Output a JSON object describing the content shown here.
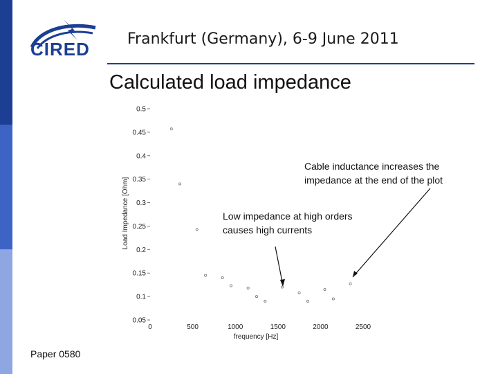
{
  "header": {
    "logo_text": "CIRED",
    "conference": "Frankfurt (Germany), 6-9 June 2011"
  },
  "slide": {
    "title": "Calculated load impedance",
    "footer": "Paper 0580"
  },
  "colors": {
    "brand_blue": "#1c3f94",
    "mid_blue": "#3d63c4",
    "light_blue": "#8ea6e2"
  },
  "annotations": {
    "cable": "Cable inductance increases the impedance at the end of the plot",
    "low": "Low impedance at high orders causes high currents"
  },
  "chart_data": {
    "type": "scatter",
    "title": "",
    "xlabel": "frequency [Hz]",
    "ylabel": "Load Impedance [Ohm]",
    "xlim": [
      0,
      2500
    ],
    "ylim": [
      0.05,
      0.5
    ],
    "xticks": [
      0,
      500,
      1000,
      1500,
      2000,
      2500
    ],
    "xtick_labels": [
      "0",
      "500",
      "1000",
      "1500",
      "2000",
      "2500"
    ],
    "yticks": [
      0.05,
      0.1,
      0.15,
      0.2,
      0.25,
      0.3,
      0.35,
      0.4,
      0.45,
      0.5
    ],
    "ytick_labels": [
      "0.05",
      "0.1",
      "0.15",
      "0.2",
      "0.25",
      "0.3",
      "0.35",
      "0.4",
      "0.45",
      "0.5"
    ],
    "grid": false,
    "series": [
      {
        "x": [
          250,
          350,
          550,
          650,
          850,
          950,
          1150,
          1250,
          1350,
          1550,
          1750,
          1850,
          2050,
          2150,
          2350
        ],
        "y": [
          0.457,
          0.34,
          0.243,
          0.145,
          0.14,
          0.123,
          0.118,
          0.1,
          0.09,
          0.12,
          0.108,
          0.09,
          0.115,
          0.095,
          0.127
        ]
      }
    ]
  }
}
